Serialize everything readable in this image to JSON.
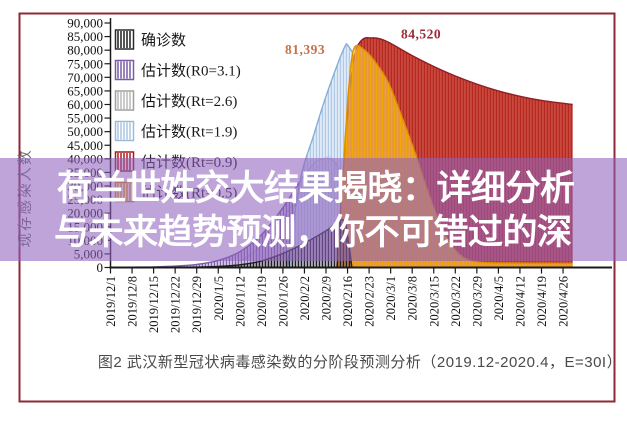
{
  "overlay": {
    "line1": "荷兰世姓交大结果揭晓：详细分析",
    "line2": "与未来趋势预测，你不可错过的深",
    "bg_color": "rgba(143,99,189,0.58)",
    "text_color": "#ffffff"
  },
  "figure": {
    "caption": "图2 武汉新型冠状病毒感染数的分阶段预测分析（2019.12-2020.4，E=30I）",
    "border_color": "#8f2936"
  },
  "chart_data": {
    "type": "area",
    "title": "",
    "xlabel": "",
    "ylabel": "现存感染人数",
    "ylim": [
      0,
      90000
    ],
    "ytick_step": 5000,
    "ytick_labels": [
      "0",
      "5,000",
      "10,000",
      "15,000",
      "20,000",
      "25,000",
      "30,000",
      "35,000",
      "40,000",
      "45,000",
      "50,000",
      "55,000",
      "60,000",
      "65,000",
      "70,000",
      "75,000",
      "80,000",
      "85,000",
      "90,000"
    ],
    "categories": [
      "2019/12/1",
      "2019/12/8",
      "2019/12/15",
      "2019/12/22",
      "2019/12/29",
      "2020/1/5",
      "2020/1/12",
      "2020/1/19",
      "2020/1/26",
      "2020/2/2",
      "2020/2/9",
      "2020/2/16",
      "2020/2/23",
      "2020/3/1",
      "2020/3/8",
      "2020/3/15",
      "2020/3/22",
      "2020/3/29",
      "2020/4/5",
      "2020/4/12",
      "2020/4/19",
      "2020/4/26"
    ],
    "grid": false,
    "legend_position": "top-left",
    "legend": [
      {
        "label": "确诊数",
        "line": "#2a2a2a",
        "border": "#2a2a2a"
      },
      {
        "label": "估计数(R0=3.1)",
        "line": "#8165ab",
        "border": "#7a5ba6"
      },
      {
        "label": "估计数(Rt=2.6)",
        "line": "#bdbdbd",
        "border": "#9f9f9f"
      },
      {
        "label": "估计数(Rt=1.9)",
        "line": "#afc9e6",
        "border": "#9db9d9"
      },
      {
        "label": "估计数(Rt=0.9)",
        "line": "#c0241e",
        "border": "#a31d1a"
      },
      {
        "label": "估计数(Rt=0.5)",
        "line": "#f2a800",
        "border": "#d99000"
      }
    ],
    "series": [
      {
        "key": "gray",
        "name": "估计数(Rt=2.6)",
        "line": "#bdbdbd",
        "gap": "rgba(245,245,245,0.7)",
        "edge": "#ababab",
        "points": [
          [
            5.5,
            0
          ],
          [
            7,
            8000
          ],
          [
            8.5,
            24000
          ],
          [
            9.5,
            36000
          ],
          [
            10.3,
            40000
          ],
          [
            10.9,
            20000
          ],
          [
            11.2,
            0
          ]
        ]
      },
      {
        "key": "purple",
        "name": "估计数(R0=3.1)",
        "line": "#8165ab",
        "gap": "rgba(236,230,245,0.55)",
        "edge": "#7a5ba6",
        "points": [
          [
            0,
            40
          ],
          [
            1,
            100
          ],
          [
            2,
            220
          ],
          [
            3,
            520
          ],
          [
            4,
            1150
          ],
          [
            5,
            2600
          ],
          [
            6,
            5800
          ],
          [
            7,
            12000
          ],
          [
            8,
            22000
          ],
          [
            9,
            34000
          ],
          [
            9.8,
            40000
          ],
          [
            10.6,
            36000
          ],
          [
            11.1,
            12000
          ],
          [
            11.35,
            0
          ]
        ]
      },
      {
        "key": "blue",
        "name": "估计数(Rt=1.9)",
        "line": "#afc9e6",
        "gap": "rgba(238,244,251,0.6)",
        "edge": "#86aed6",
        "points": [
          [
            8.2,
            0
          ],
          [
            8.8,
            32000
          ],
          [
            9.4,
            48000
          ],
          [
            10,
            63000
          ],
          [
            10.8,
            80000
          ],
          [
            11.05,
            81393
          ],
          [
            11.5,
            73000
          ],
          [
            12.2,
            48000
          ],
          [
            13,
            18000
          ],
          [
            13.8,
            0
          ]
        ]
      },
      {
        "key": "red",
        "name": "估计数(Rt=0.9)",
        "line": "#b5271f",
        "gap": "#d0574b",
        "edge": "#8e1f24",
        "points": [
          [
            10.5,
            0
          ],
          [
            10.8,
            35000
          ],
          [
            11.1,
            65000
          ],
          [
            11.35,
            79000
          ],
          [
            11.7,
            84000
          ],
          [
            12.1,
            84520
          ],
          [
            12.5,
            84200
          ],
          [
            13,
            82500
          ],
          [
            14,
            78000
          ],
          [
            15,
            74000
          ],
          [
            16,
            70500
          ],
          [
            17,
            67500
          ],
          [
            18,
            65000
          ],
          [
            19,
            63000
          ],
          [
            20,
            61500
          ],
          [
            21.45,
            60000
          ]
        ]
      },
      {
        "key": "yellow",
        "name": "估计数(Rt=0.5)",
        "line": "#f2a800",
        "gap": "rgba(253,222,130,0.45)",
        "edge": "#de8f00",
        "points": [
          [
            10.55,
            0
          ],
          [
            10.75,
            28000
          ],
          [
            10.95,
            55000
          ],
          [
            11.15,
            74000
          ],
          [
            11.35,
            81393
          ],
          [
            11.8,
            80000
          ],
          [
            12.3,
            75500
          ],
          [
            12.9,
            68000
          ],
          [
            13.5,
            56000
          ],
          [
            14.1,
            43000
          ],
          [
            14.6,
            31000
          ],
          [
            15.1,
            20000
          ],
          [
            15.6,
            11000
          ],
          [
            16.1,
            5500
          ],
          [
            16.6,
            2800
          ],
          [
            17.2,
            1900
          ],
          [
            18,
            1700
          ],
          [
            19.5,
            1600
          ],
          [
            21.45,
            1550
          ]
        ]
      },
      {
        "key": "black",
        "name": "确诊数",
        "line": "#1f1f1f",
        "gap": "transparent",
        "edge": "#1f1f1f",
        "points": [
          [
            0,
            0
          ],
          [
            3,
            60
          ],
          [
            4,
            150
          ],
          [
            5,
            400
          ],
          [
            6,
            1000
          ],
          [
            7,
            2400
          ],
          [
            8,
            5200
          ],
          [
            9,
            9000
          ],
          [
            10,
            13500
          ],
          [
            10.8,
            17500
          ],
          [
            11.05,
            9000
          ],
          [
            11.2,
            0
          ]
        ]
      }
    ],
    "annotations": [
      {
        "text": "81,393",
        "x": 305,
        "y": 54,
        "color": "#c4714b"
      },
      {
        "text": "84,520",
        "x": 421,
        "y": 38.5,
        "color": "#9b2b35"
      }
    ]
  }
}
